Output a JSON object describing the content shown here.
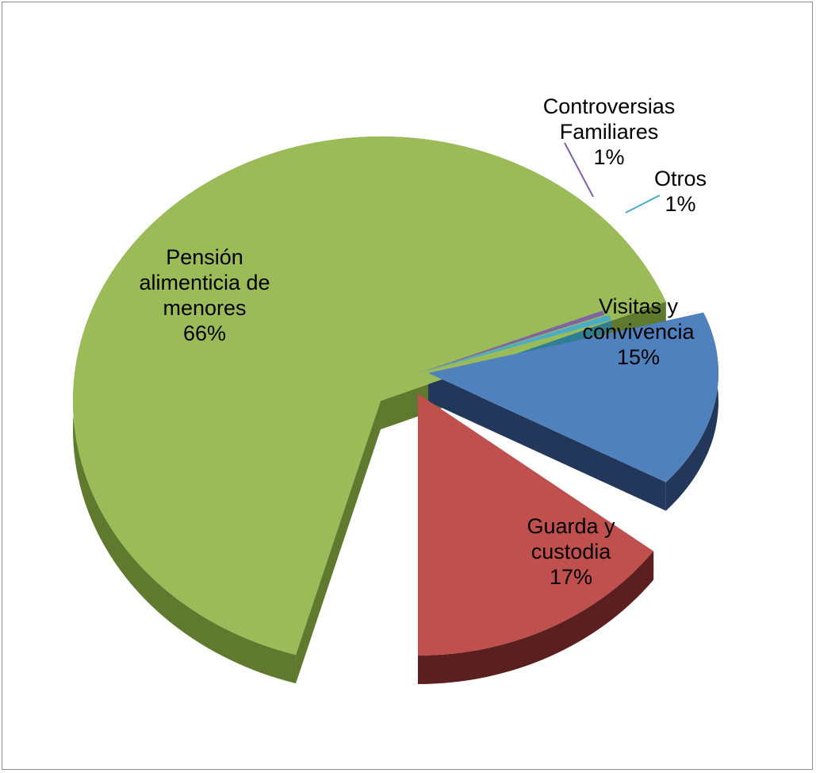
{
  "chart_data": {
    "type": "pie",
    "title": "",
    "style": "3d-exploded",
    "slices": [
      {
        "label_lines": [
          "Pensión",
          "alimenticia de",
          "menores"
        ],
        "value": 66,
        "pct_label": "66%",
        "color": "#9BBB59",
        "side_color": "#5F7A2E"
      },
      {
        "label_lines": [
          "Controversias",
          "Familiares"
        ],
        "value": 1,
        "pct_label": "1%",
        "color": "#8064A2",
        "side_color": "#5A4672"
      },
      {
        "label_lines": [
          "Otros"
        ],
        "value": 1,
        "pct_label": "1%",
        "color": "#4BACC6",
        "side_color": "#2F7F92"
      },
      {
        "label_lines": [
          "Visitas y",
          "convivencia"
        ],
        "value": 15,
        "pct_label": "15%",
        "color": "#4F81BD",
        "side_color": "#22375A"
      },
      {
        "label_lines": [
          "Guarda y",
          "custodia"
        ],
        "value": 17,
        "pct_label": "17%",
        "color": "#C0504D",
        "side_color": "#5A1F1E"
      }
    ]
  }
}
